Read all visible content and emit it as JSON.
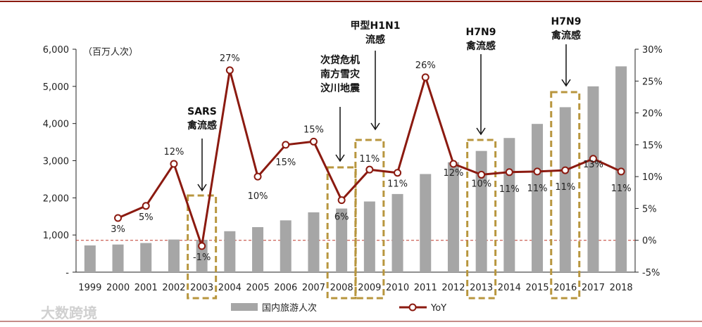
{
  "chart_data": {
    "type": "bar",
    "categories": [
      "1999",
      "2000",
      "2001",
      "2002",
      "2003",
      "2004",
      "2005",
      "2006",
      "2007",
      "2008",
      "2009",
      "2010",
      "2011",
      "2012",
      "2013",
      "2014",
      "2015",
      "2016",
      "2017",
      "2018"
    ],
    "series": [
      {
        "name": "国内旅游人次",
        "type": "bar",
        "axis": "left",
        "color": "#a6a6a6",
        "values": [
          719,
          744,
          784,
          878,
          870,
          1102,
          1212,
          1394,
          1610,
          1712,
          1902,
          2103,
          2641,
          2957,
          3262,
          3611,
          3990,
          4440,
          5001,
          5539
        ]
      },
      {
        "name": "YoY",
        "type": "line",
        "axis": "right",
        "color": "#8b1a10",
        "unit": "%",
        "values": [
          null,
          3.5,
          5.4,
          12.0,
          -0.9,
          26.7,
          10.0,
          15.0,
          15.5,
          6.3,
          11.1,
          10.6,
          25.6,
          12.0,
          10.3,
          10.7,
          10.8,
          11.0,
          12.8,
          10.8
        ],
        "labels": [
          "",
          "3%",
          "5%",
          "12%",
          "-1%",
          "27%",
          "10%",
          "15%",
          "15%",
          "6%",
          "11%",
          "11%",
          "26%",
          "12%",
          "10%",
          "11%",
          "11%",
          "11%",
          "13%",
          "11%"
        ]
      }
    ],
    "y_left": {
      "min": 0,
      "max": 6000,
      "ticks": [
        "-",
        "1,000",
        "2,000",
        "3,000",
        "4,000",
        "5,000",
        "6,000"
      ],
      "unit_label": "（百万人次）"
    },
    "y_right": {
      "min": -5,
      "max": 30,
      "ticks": [
        "-5%",
        "0%",
        "5%",
        "10%",
        "15%",
        "20%",
        "25%",
        "30%"
      ]
    },
    "reference_line": {
      "axis": "right",
      "value": 0,
      "style": "dashed",
      "color": "#c0392b"
    },
    "annotations": [
      {
        "year": "2003",
        "lines": [
          "SARS",
          "禽流感"
        ]
      },
      {
        "year": "2008",
        "lines": [
          "次贷危机",
          "南方雪灾",
          "汶川地震"
        ]
      },
      {
        "year": "2009",
        "lines": [
          "甲型H1N1",
          "流感"
        ]
      },
      {
        "year": "2013",
        "lines": [
          "H7N9",
          "禽流感"
        ]
      },
      {
        "year": "2016",
        "lines": [
          "H7N9",
          "禽流感"
        ]
      }
    ],
    "legend": [
      "国内旅游人次",
      "YoY"
    ],
    "legend_position": "bottom"
  },
  "watermark": "大数跨境"
}
